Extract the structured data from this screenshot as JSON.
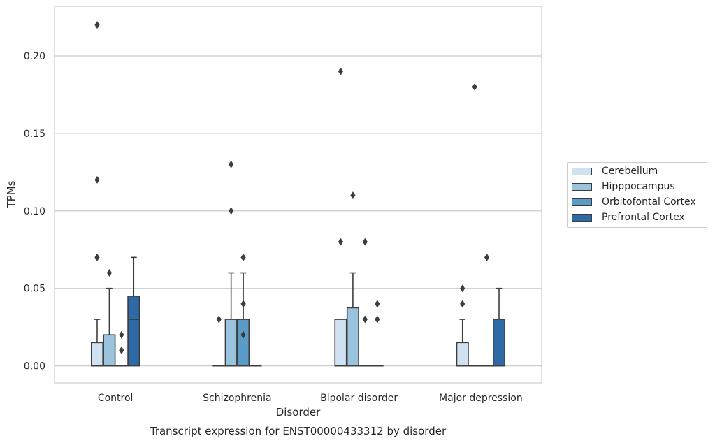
{
  "chart_data": {
    "type": "box",
    "title": "Transcript expression for ENST00000433312 by disorder",
    "xlabel": "Disorder",
    "ylabel": "TPMs",
    "ylim": [
      -0.011,
      0.232
    ],
    "yticks": [
      "0.00",
      "0.05",
      "0.10",
      "0.15",
      "0.20"
    ],
    "grid": "horizontal",
    "legend_position": "right",
    "categories": [
      "Control",
      "Schizophrenia",
      "Bipolar disorder",
      "Major depression"
    ],
    "series": [
      {
        "name": "Cerebellum",
        "color": "#d0e1f2",
        "boxes": [
          {
            "q1": 0,
            "median": 0,
            "q3": 0.015,
            "whisker_low": 0,
            "whisker_high": 0.03,
            "outliers": [
              0.07,
              0.12,
              0.22
            ]
          },
          {
            "q1": 0,
            "median": 0,
            "q3": 0,
            "whisker_low": 0,
            "whisker_high": 0,
            "outliers": [
              0.03
            ]
          },
          {
            "q1": 0,
            "median": 0,
            "q3": 0.03,
            "whisker_low": 0,
            "whisker_high": 0.03,
            "outliers": [
              0.08,
              0.19
            ]
          },
          {
            "q1": 0,
            "median": 0,
            "q3": 0.015,
            "whisker_low": 0,
            "whisker_high": 0.03,
            "outliers": [
              0.04,
              0.05
            ]
          }
        ]
      },
      {
        "name": "Hipppocampus",
        "color": "#9ac3de",
        "boxes": [
          {
            "q1": 0,
            "median": 0,
            "q3": 0.02,
            "whisker_low": 0,
            "whisker_high": 0.05,
            "outliers": [
              0.06
            ]
          },
          {
            "q1": 0,
            "median": 0,
            "q3": 0.03,
            "whisker_low": 0,
            "whisker_high": 0.06,
            "outliers": [
              0.1,
              0.13
            ]
          },
          {
            "q1": 0,
            "median": 0,
            "q3": 0.0375,
            "whisker_low": 0,
            "whisker_high": 0.06,
            "outliers": [
              0.11
            ]
          },
          {
            "q1": 0,
            "median": 0,
            "q3": 0,
            "whisker_low": 0,
            "whisker_high": 0,
            "outliers": [
              0.18
            ]
          }
        ]
      },
      {
        "name": "Orbitofontal Cortex",
        "color": "#5b9bc8",
        "boxes": [
          {
            "q1": 0,
            "median": 0,
            "q3": 0,
            "whisker_low": 0,
            "whisker_high": 0,
            "outliers": [
              0.01,
              0.02
            ]
          },
          {
            "q1": 0,
            "median": 0,
            "q3": 0.03,
            "whisker_low": 0,
            "whisker_high": 0.06,
            "outliers": [
              0.02,
              0.04,
              0.07
            ]
          },
          {
            "q1": 0,
            "median": 0,
            "q3": 0,
            "whisker_low": 0,
            "whisker_high": 0,
            "outliers": [
              0.03,
              0.08
            ]
          },
          {
            "q1": 0,
            "median": 0,
            "q3": 0,
            "whisker_low": 0,
            "whisker_high": 0,
            "outliers": [
              0.07
            ]
          }
        ]
      },
      {
        "name": "Prefrontal Cortex",
        "color": "#2d6aa6",
        "boxes": [
          {
            "q1": 0,
            "median": 0.03,
            "q3": 0.045,
            "whisker_low": 0,
            "whisker_high": 0.07,
            "outliers": []
          },
          {
            "q1": 0,
            "median": 0,
            "q3": 0,
            "whisker_low": 0,
            "whisker_high": 0,
            "outliers": []
          },
          {
            "q1": 0,
            "median": 0,
            "q3": 0,
            "whisker_low": 0,
            "whisker_high": 0,
            "outliers": [
              0.03,
              0.04
            ]
          },
          {
            "q1": 0,
            "median": 0,
            "q3": 0.03,
            "whisker_low": 0,
            "whisker_high": 0.05,
            "outliers": []
          }
        ]
      }
    ]
  }
}
